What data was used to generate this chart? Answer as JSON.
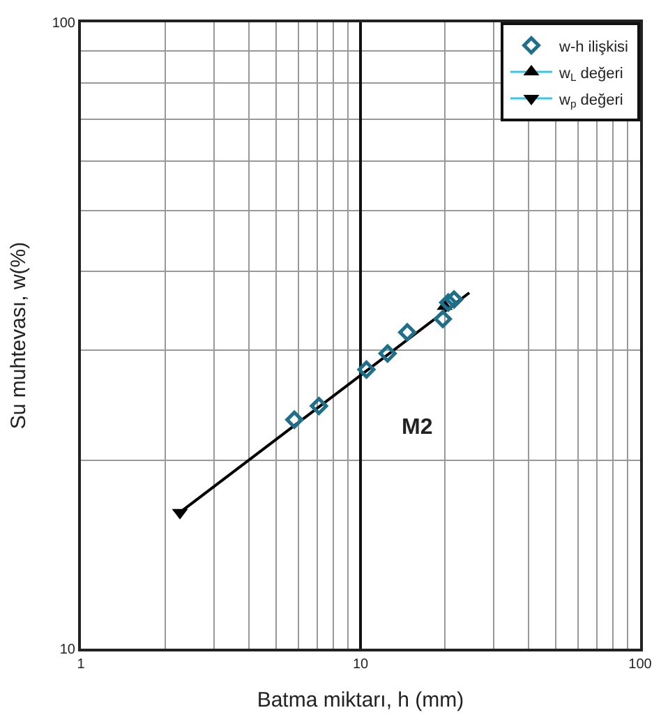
{
  "chart_data": {
    "type": "scatter",
    "xlabel": "Batma miktarı, h (mm)",
    "ylabel": "Su muhtevası, w(%)",
    "log": "xy",
    "xlim": [
      1,
      100
    ],
    "ylim": [
      10,
      100
    ],
    "xticks": [
      1,
      10,
      100
    ],
    "yticks": [
      10,
      100
    ],
    "grid": true,
    "legend": "top right",
    "series": [
      {
        "name": "w-h ilişkisi",
        "marker": "diamond",
        "color": "#1f6f8b",
        "x": [
          5.8,
          7.1,
          10.5,
          12.5,
          14.7,
          19.7,
          20.6,
          21.6
        ],
        "values": [
          23.2,
          24.4,
          27.9,
          29.6,
          32.0,
          33.6,
          35.7,
          36.1
        ]
      },
      {
        "name": "w$_{L}$ değeri",
        "marker": "triangle",
        "color": "#000000",
        "x": [
          20
        ],
        "values": [
          35.2
        ]
      },
      {
        "name": "w$_{p}$ değeri",
        "marker": "triangle-down",
        "color": "#000000",
        "x": [
          2.26
        ],
        "values": [
          16.5
        ]
      },
      {
        "type": "line",
        "marker": "none",
        "color": "#000000",
        "x": [
          2.26,
          24.5
        ],
        "values": [
          16.5,
          37.0
        ]
      }
    ],
    "annotations": [
      "M2"
    ]
  }
}
